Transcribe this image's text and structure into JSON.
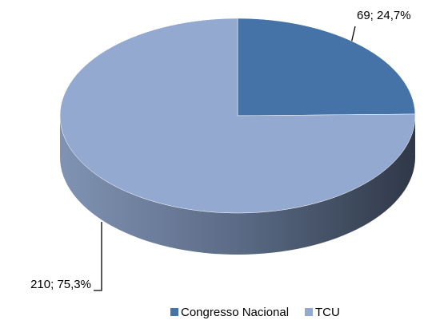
{
  "chart_data": {
    "type": "pie3d",
    "categories": [
      "Congresso Nacional",
      "TCU"
    ],
    "values": [
      69,
      210
    ],
    "value_labels": [
      "69; 24,7%",
      "210; 75,3%"
    ],
    "colors": [
      "#4572a7",
      "#93a9cf"
    ],
    "legend": "bottom"
  }
}
